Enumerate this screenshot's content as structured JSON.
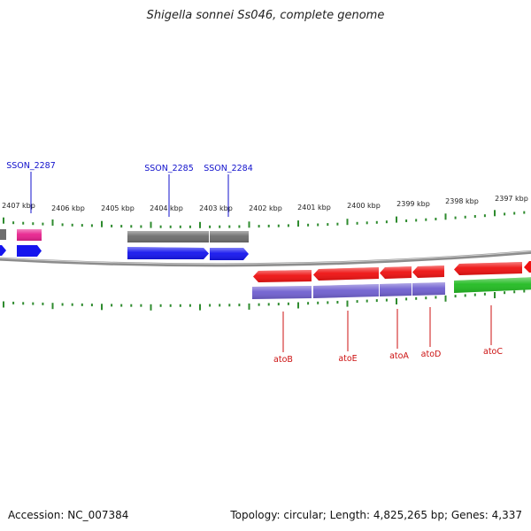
{
  "title": "Shigella sonnei Ss046, complete genome",
  "footer": {
    "accession": "Accession: NC_007384",
    "summary": "Topology: circular; Length: 4,825,265 bp; Genes: 4,337"
  },
  "colors": {
    "backbone": "#8c8c8c",
    "tick": "#2e8b2e",
    "cds_plus": "#1515ee",
    "cds_minus": "#ee1111",
    "gene_gray": "#6e6e6e",
    "gene_pink": "#e8228e",
    "gene_purple": "#7060d0",
    "gene_green": "#22bb22",
    "label_plus": "#1111cc",
    "label_minus": "#cc1111"
  },
  "ruler": [
    {
      "label": "2407 kbp"
    },
    {
      "label": "2406 kbp"
    },
    {
      "label": "2405 kbp"
    },
    {
      "label": "2404 kbp"
    },
    {
      "label": "2403 kbp"
    },
    {
      "label": "2402 kbp"
    },
    {
      "label": "2401 kbp"
    },
    {
      "label": "2400 kbp"
    },
    {
      "label": "2399 kbp"
    },
    {
      "label": "2398 kbp"
    },
    {
      "label": "2397 kbp"
    }
  ],
  "labels_top": [
    {
      "text": "SSON_2287"
    },
    {
      "text": "SSON_2285"
    },
    {
      "text": "SSON_2284"
    }
  ],
  "labels_bottom": [
    {
      "text": "atoB"
    },
    {
      "text": "atoE"
    },
    {
      "text": "atoA"
    },
    {
      "text": "atoD"
    },
    {
      "text": "atoC"
    }
  ]
}
